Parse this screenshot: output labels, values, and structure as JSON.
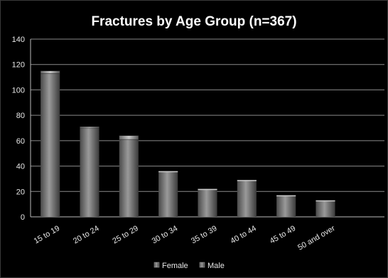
{
  "chart_data": {
    "type": "bar",
    "stacked": true,
    "title": "Fractures by Age Group (n=367)",
    "categories": [
      "15 to 19",
      "20 to 24",
      "25 to 29",
      "30 to 34",
      "35 to 39",
      "40 to 44",
      "45 to 49",
      "50 and over"
    ],
    "series": [
      {
        "name": "Female",
        "values": [
          2,
          1,
          3,
          0,
          0,
          0,
          0,
          0
        ]
      },
      {
        "name": "Male",
        "values": [
          113,
          70,
          61,
          36,
          22,
          29,
          17,
          13
        ]
      }
    ],
    "ylim": [
      0,
      140
    ],
    "yticks": [
      0,
      20,
      40,
      60,
      80,
      100,
      120,
      140
    ],
    "grid": true,
    "legend_position": "bottom",
    "colors": {
      "background": "#000000",
      "gridline": "#8a8a8a",
      "bar_dark": "#3e3e3e",
      "bar_light": "#9a9a9a",
      "text": "#e8e8e8"
    }
  }
}
